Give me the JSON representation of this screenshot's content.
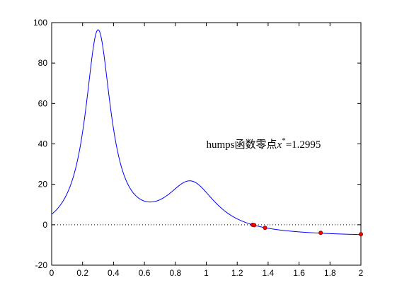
{
  "chart_data": {
    "type": "line",
    "title": "",
    "xlabel": "",
    "ylabel": "",
    "xlim": [
      0,
      2
    ],
    "ylim": [
      -20,
      100
    ],
    "xticks": [
      "0",
      "0.2",
      "0.4",
      "0.6",
      "0.8",
      "1",
      "1.2",
      "1.4",
      "1.6",
      "1.8",
      "2"
    ],
    "yticks": [
      "-20",
      "0",
      "20",
      "40",
      "60",
      "80",
      "100"
    ],
    "grid": false,
    "colors": {
      "curve": "#0000ff",
      "zero_line": "#000000",
      "markers": "#ff0000",
      "marker_edge": "#8b0000"
    },
    "series": [
      {
        "function": "humps",
        "x": [
          0,
          0.05,
          0.1,
          0.15,
          0.2,
          0.25,
          0.28,
          0.3,
          0.32,
          0.35,
          0.4,
          0.45,
          0.5,
          0.55,
          0.6,
          0.637,
          0.7,
          0.75,
          0.8,
          0.85,
          0.9,
          0.95,
          1.0,
          1.05,
          1.1,
          1.2,
          1.3,
          1.4,
          1.5,
          1.6,
          1.7,
          1.8,
          1.9,
          2.0
        ],
        "y": [
          5.18,
          9.2,
          16.5,
          31.2,
          58.9,
          89.0,
          96.2,
          96.5,
          91.0,
          71.9,
          40.9,
          24.8,
          17.6,
          13.8,
          11.9,
          11.3,
          12.1,
          15.1,
          18.6,
          21.3,
          21.7,
          19.0,
          16.0,
          11.7,
          8.2,
          3.3,
          0.3,
          -1.6,
          -2.8,
          -3.5,
          -3.9,
          -4.3,
          -4.6,
          -4.7
        ]
      }
    ],
    "zero_line": {
      "y": 0,
      "style": "dotted"
    },
    "markers": [
      {
        "x": 1.2995,
        "y": 0
      },
      {
        "x": 1.31,
        "y": -0.2
      },
      {
        "x": 1.38,
        "y": -1.5
      },
      {
        "x": 1.74,
        "y": -4.0
      },
      {
        "x": 2.0,
        "y": -4.7
      }
    ],
    "annotation": {
      "text": "humps函数零点",
      "math_var": "x",
      "superscript": "*",
      "value": "=1.2995",
      "x": 1.0,
      "y": 38
    }
  }
}
